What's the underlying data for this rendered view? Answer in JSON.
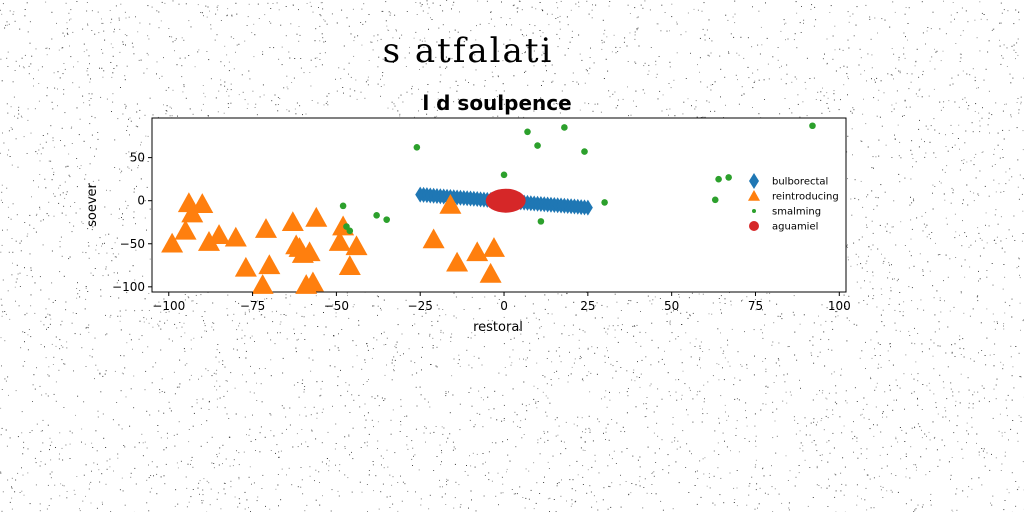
{
  "figure": {
    "suptitle": "s atfalati"
  },
  "chart_data": {
    "type": "scatter",
    "title": "l d soulpence",
    "xlabel": "restoral",
    "ylabel": "soever",
    "xlim": [
      -105,
      102
    ],
    "ylim": [
      -106,
      96
    ],
    "xticks": [
      -100,
      -75,
      -50,
      -25,
      0,
      25,
      50,
      75,
      100
    ],
    "xtick_labels": [
      "−100",
      "−75",
      "−50",
      "−25",
      "0",
      "25",
      "50",
      "75",
      "100"
    ],
    "yticks": [
      50,
      0,
      -50,
      -100
    ],
    "ytick_labels": [
      "50",
      "0",
      "−50",
      "−100"
    ],
    "grid": false,
    "legend_position": "right",
    "series": [
      {
        "name": "bulborectal",
        "marker": "thin_diamond",
        "color": "#1f77b4",
        "x": [
          -25,
          -24,
          -23,
          -22,
          -21,
          -20,
          -19,
          -18,
          -17,
          -16,
          -15,
          -14,
          -13,
          -12,
          -11,
          -10,
          -9,
          -8,
          -7,
          -6,
          -5,
          -4,
          -3,
          -2,
          -1,
          0,
          1,
          2,
          3,
          4,
          5,
          6,
          7,
          8,
          9,
          10,
          11,
          12,
          13,
          14,
          15,
          16,
          17,
          18,
          19,
          20,
          21,
          22,
          23,
          24,
          25
        ],
        "y": [
          7,
          6.7,
          6.4,
          6.1,
          5.8,
          5.5,
          5.2,
          4.9,
          4.6,
          4.3,
          4,
          3.7,
          3.4,
          3.1,
          2.8,
          2.5,
          2.2,
          1.9,
          1.6,
          1.3,
          1,
          0.7,
          0.4,
          0.1,
          -0.2,
          -0.5,
          -0.8,
          -1.1,
          -1.4,
          -1.7,
          -2,
          -2.3,
          -2.6,
          -2.9,
          -3.2,
          -3.5,
          -3.8,
          -4.1,
          -4.4,
          -4.7,
          -5,
          -5.3,
          -5.6,
          -5.9,
          -6.2,
          -6.5,
          -6.8,
          -7.1,
          -7.4,
          -7.7,
          -8
        ]
      },
      {
        "name": "reintroducing",
        "marker": "triangle",
        "color": "#ff7f0e",
        "x": [
          -99,
          -95,
          -94,
          -93,
          -90,
          -88,
          -85,
          -80,
          -77,
          -72,
          -71,
          -70,
          -63,
          -62,
          -61,
          -60,
          -59,
          -58,
          -57,
          -56,
          -49,
          -48,
          -46,
          -44,
          -21,
          -16,
          -14,
          -8,
          -4,
          -3
        ],
        "y": [
          -50,
          -35,
          -3,
          -15,
          -4,
          -48,
          -40,
          -43,
          -78,
          -98,
          -33,
          -75,
          -25,
          -52,
          -55,
          -62,
          -98,
          -60,
          -95,
          -20,
          -48,
          -30,
          -76,
          -53,
          -45,
          -5,
          -72,
          -60,
          -85,
          -55
        ]
      },
      {
        "name": "smalming",
        "marker": "circle",
        "color": "#2ca02c",
        "x": [
          -48,
          -47,
          -46,
          -38,
          -35,
          -26,
          0,
          7,
          10,
          11,
          18,
          24,
          30,
          63,
          64,
          67,
          92
        ],
        "y": [
          -6,
          -30,
          -35,
          -17,
          -22,
          62,
          30,
          80,
          64,
          -24,
          85,
          57,
          -2,
          1,
          25,
          27,
          87
        ]
      },
      {
        "name": "aguamiel",
        "marker": "circle",
        "color": "#d62728",
        "x": [
          0,
          0.5,
          1
        ],
        "y": [
          0,
          -0.5,
          0.5
        ]
      }
    ]
  }
}
